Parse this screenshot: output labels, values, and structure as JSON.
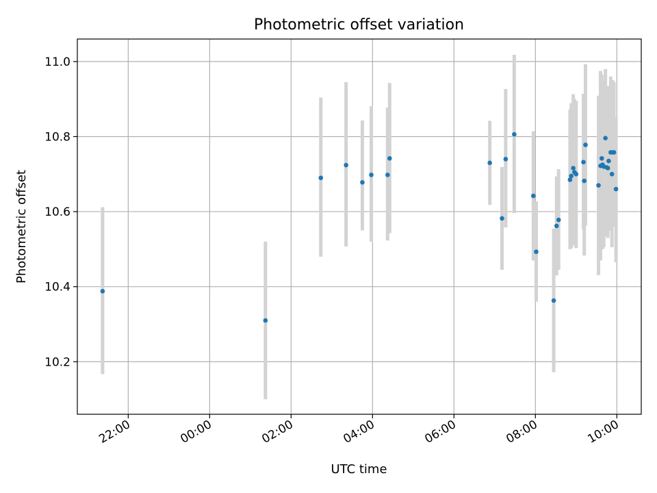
{
  "chart_data": {
    "type": "scatter",
    "title": "Photometric offset variation",
    "xlabel": "UTC time",
    "ylabel": "Photometric offset",
    "x_unit": "hours",
    "xlim": [
      -3.25,
      10.6
    ],
    "ylim": [
      10.06,
      11.06
    ],
    "x_ticks": [
      {
        "value": -2,
        "label": "22:00"
      },
      {
        "value": 0,
        "label": "00:00"
      },
      {
        "value": 2,
        "label": "02:00"
      },
      {
        "value": 4,
        "label": "04:00"
      },
      {
        "value": 6,
        "label": "06:00"
      },
      {
        "value": 8,
        "label": "08:00"
      },
      {
        "value": 10,
        "label": "10:00"
      }
    ],
    "y_ticks": [
      {
        "value": 10.2,
        "label": "10.2"
      },
      {
        "value": 10.4,
        "label": "10.4"
      },
      {
        "value": 10.6,
        "label": "10.6"
      },
      {
        "value": 10.8,
        "label": "10.8"
      },
      {
        "value": 11.0,
        "label": "11.0"
      }
    ],
    "grid": true,
    "marker_color": "#1f77b4",
    "errorbar_color": "#d3d3d3",
    "points": [
      {
        "x": -2.63,
        "y": 10.388,
        "lo": 10.167,
        "hi": 10.612
      },
      {
        "x": 1.37,
        "y": 10.31,
        "lo": 10.1,
        "hi": 10.52
      },
      {
        "x": 2.73,
        "y": 10.69,
        "lo": 10.48,
        "hi": 10.904
      },
      {
        "x": 3.35,
        "y": 10.724,
        "lo": 10.507,
        "hi": 10.945
      },
      {
        "x": 3.75,
        "y": 10.678,
        "lo": 10.55,
        "hi": 10.843
      },
      {
        "x": 3.97,
        "y": 10.698,
        "lo": 10.52,
        "hi": 10.881
      },
      {
        "x": 4.37,
        "y": 10.698,
        "lo": 10.523,
        "hi": 10.877
      },
      {
        "x": 4.42,
        "y": 10.742,
        "lo": 10.543,
        "hi": 10.943
      },
      {
        "x": 6.88,
        "y": 10.73,
        "lo": 10.618,
        "hi": 10.842
      },
      {
        "x": 7.18,
        "y": 10.582,
        "lo": 10.445,
        "hi": 10.719
      },
      {
        "x": 7.27,
        "y": 10.74,
        "lo": 10.558,
        "hi": 10.927
      },
      {
        "x": 7.48,
        "y": 10.806,
        "lo": 10.596,
        "hi": 11.018
      },
      {
        "x": 7.95,
        "y": 10.642,
        "lo": 10.47,
        "hi": 10.814
      },
      {
        "x": 8.02,
        "y": 10.493,
        "lo": 10.36,
        "hi": 10.627
      },
      {
        "x": 8.45,
        "y": 10.363,
        "lo": 10.172,
        "hi": 10.555
      },
      {
        "x": 8.52,
        "y": 10.562,
        "lo": 10.43,
        "hi": 10.694
      },
      {
        "x": 8.57,
        "y": 10.578,
        "lo": 10.445,
        "hi": 10.713
      },
      {
        "x": 8.85,
        "y": 10.685,
        "lo": 10.5,
        "hi": 10.872
      },
      {
        "x": 8.88,
        "y": 10.695,
        "lo": 10.503,
        "hi": 10.889
      },
      {
        "x": 8.93,
        "y": 10.716,
        "lo": 10.52,
        "hi": 10.913
      },
      {
        "x": 8.96,
        "y": 10.705,
        "lo": 10.51,
        "hi": 10.9
      },
      {
        "x": 9.0,
        "y": 10.7,
        "lo": 10.503,
        "hi": 10.895
      },
      {
        "x": 9.18,
        "y": 10.732,
        "lo": 10.552,
        "hi": 10.914
      },
      {
        "x": 9.2,
        "y": 10.682,
        "lo": 10.483,
        "hi": 10.882
      },
      {
        "x": 9.23,
        "y": 10.778,
        "lo": 10.563,
        "hi": 10.993
      },
      {
        "x": 9.55,
        "y": 10.67,
        "lo": 10.431,
        "hi": 10.909
      },
      {
        "x": 9.6,
        "y": 10.722,
        "lo": 10.47,
        "hi": 10.975
      },
      {
        "x": 9.63,
        "y": 10.742,
        "lo": 10.51,
        "hi": 10.965
      },
      {
        "x": 9.65,
        "y": 10.725,
        "lo": 10.5,
        "hi": 10.95
      },
      {
        "x": 9.68,
        "y": 10.72,
        "lo": 10.505,
        "hi": 10.935
      },
      {
        "x": 9.72,
        "y": 10.796,
        "lo": 10.59,
        "hi": 10.98
      },
      {
        "x": 9.75,
        "y": 10.718,
        "lo": 10.535,
        "hi": 10.93
      },
      {
        "x": 9.78,
        "y": 10.716,
        "lo": 10.53,
        "hi": 10.935
      },
      {
        "x": 9.8,
        "y": 10.735,
        "lo": 10.55,
        "hi": 10.92
      },
      {
        "x": 9.85,
        "y": 10.758,
        "lo": 10.56,
        "hi": 10.96
      },
      {
        "x": 9.88,
        "y": 10.7,
        "lo": 10.505,
        "hi": 10.895
      },
      {
        "x": 9.9,
        "y": 10.758,
        "lo": 10.56,
        "hi": 10.95
      },
      {
        "x": 9.93,
        "y": 10.758,
        "lo": 10.57,
        "hi": 10.945
      },
      {
        "x": 9.98,
        "y": 10.66,
        "lo": 10.465,
        "hi": 10.852
      }
    ]
  }
}
